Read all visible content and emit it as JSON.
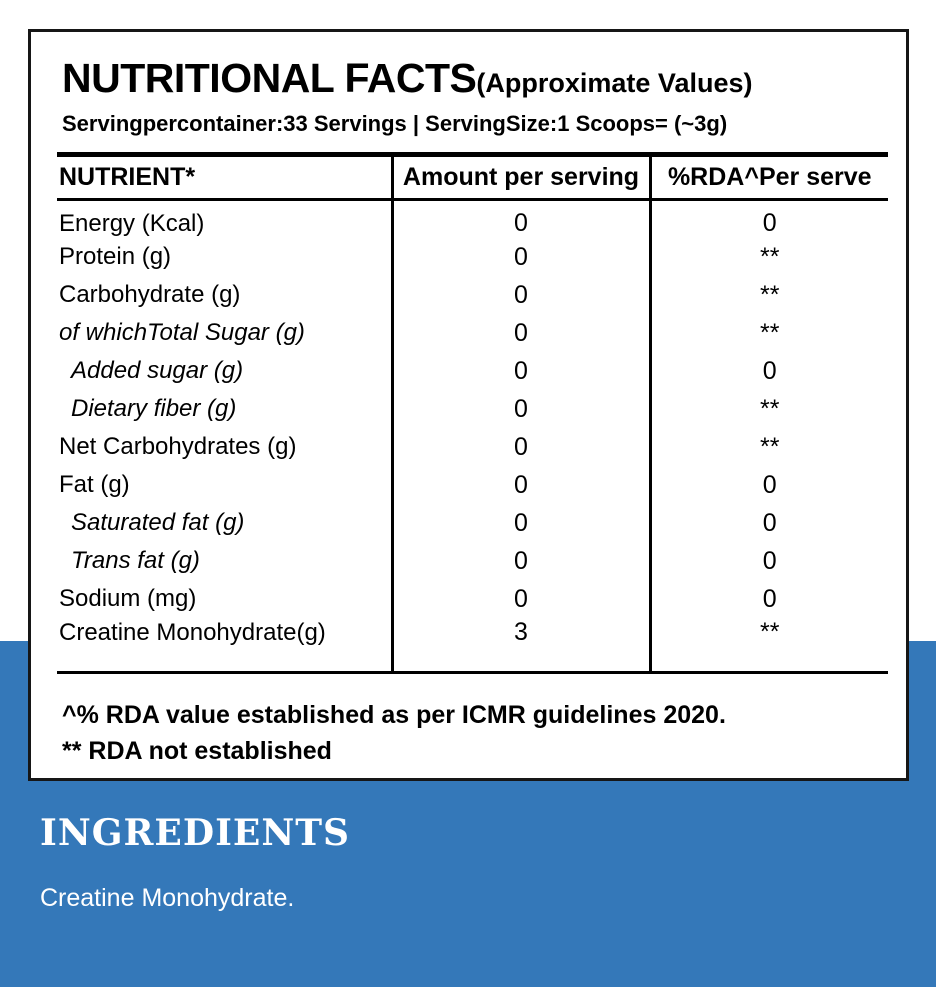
{
  "label": {
    "title": "NUTRITIONAL FACTS",
    "title_suffix": "(Approximate Values)",
    "serving_info": "Servingpercontainer:33 Servings | ServingSize:1 Scoops= (~3g)"
  },
  "table": {
    "headers": [
      "NUTRIENT*",
      "Amount per serving",
      "%RDA^Per serve"
    ],
    "rows": [
      {
        "nutrient": "Energy (Kcal)",
        "amount": "0",
        "rda": "0"
      },
      {
        "nutrient": "Protein (g)",
        "amount": "0",
        "rda": "**"
      },
      {
        "nutrient": "Carbohydrate (g)",
        "amount": "0",
        "rda": "**"
      },
      {
        "nutrient": "of whichTotal Sugar (g)",
        "amount": "0",
        "rda": "**"
      },
      {
        "nutrient": "Added sugar (g)",
        "amount": "0",
        "rda": "0"
      },
      {
        "nutrient": "Dietary fiber (g)",
        "amount": "0",
        "rda": "**"
      },
      {
        "nutrient": "Net Carbohydrates (g)",
        "amount": "0",
        "rda": "**"
      },
      {
        "nutrient": "Fat (g)",
        "amount": "0",
        "rda": "0"
      },
      {
        "nutrient": "Saturated fat (g)",
        "amount": "0",
        "rda": "0"
      },
      {
        "nutrient": "Trans fat (g)",
        "amount": "0",
        "rda": "0"
      },
      {
        "nutrient": "Sodium (mg)",
        "amount": "0",
        "rda": "0"
      },
      {
        "nutrient": "Creatine Monohydrate(g)",
        "amount": "3",
        "rda": "**"
      }
    ]
  },
  "footnotes": {
    "line1": "^% RDA value established as per ICMR guidelines 2020.",
    "line2": "** RDA not established"
  },
  "ingredients": {
    "heading": "INGREDIENTS",
    "text": "Creatine Monohydrate."
  },
  "colors": {
    "accent_blue": "#3478b9",
    "card_border": "#161616",
    "text_black": "#000000",
    "text_white": "#ffffff"
  }
}
